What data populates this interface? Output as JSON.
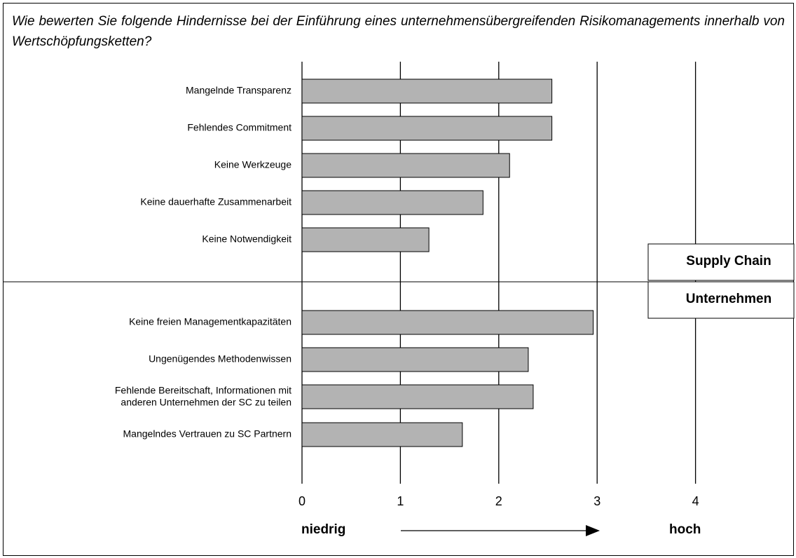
{
  "chart_data": {
    "type": "bar",
    "orientation": "horizontal",
    "title": "Wie bewerten Sie folgende Hindernisse bei der Einführung eines unternehmensübergreifenden Risikomanagements innerhalb von Wertschöpfungsketten?",
    "groups": [
      {
        "name": "Supply Chain",
        "categories": [
          "Mangelnde Transparenz",
          "Fehlendes Commitment",
          "Keine Werkzeuge",
          "Keine dauerhafte Zusammenarbeit",
          "Keine Notwendigkeit"
        ],
        "values": [
          2.54,
          2.54,
          2.11,
          1.84,
          1.29
        ]
      },
      {
        "name": "Unternehmen",
        "categories": [
          "Keine freien Managementkapazitäten",
          "Ungenügendes Methodenwissen",
          "Fehlende Bereitschaft, Informationen mit\nanderen  Unternehmen der SC zu teilen",
          "Mangelndes Vertrauen zu SC Partnern"
        ],
        "values": [
          2.96,
          2.3,
          2.35,
          1.63
        ]
      }
    ],
    "color": "#b3b3b3",
    "xlim": [
      0,
      5
    ],
    "xticks": [
      0,
      1,
      2,
      3,
      4
    ],
    "grid": true,
    "axis_low_label": "niedrig",
    "axis_high_label": "hoch"
  }
}
